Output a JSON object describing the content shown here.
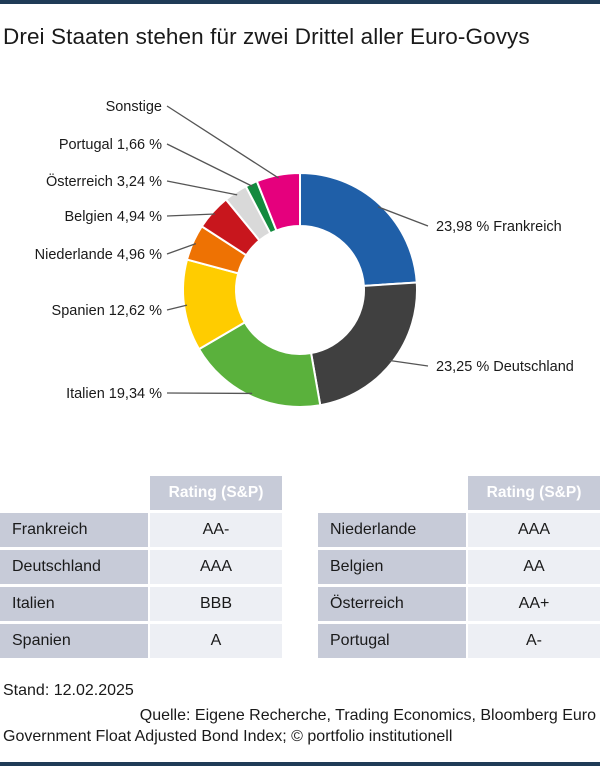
{
  "title": "Drei Staaten stehen für zwei Drittel aller Euro-Govys",
  "chart_data": {
    "type": "pie",
    "variant": "donut",
    "start": "12 o'clock, clockwise",
    "slices": [
      {
        "name": "Frankreich",
        "value": 23.98,
        "label": "23,98 % Frankreich",
        "color": "#1f5fa8",
        "label_side": "right"
      },
      {
        "name": "Deutschland",
        "value": 23.25,
        "label": "23,25 % Deutschland",
        "color": "#404040",
        "label_side": "right"
      },
      {
        "name": "Italien",
        "value": 19.34,
        "label": "Italien 19,34 %",
        "color": "#5ab13c",
        "label_side": "left"
      },
      {
        "name": "Spanien",
        "value": 12.62,
        "label": "Spanien 12,62 %",
        "color": "#ffcc00",
        "label_side": "left"
      },
      {
        "name": "Niederlande",
        "value": 4.96,
        "label": "Niederlande 4,96 %",
        "color": "#ee7203",
        "label_side": "left"
      },
      {
        "name": "Belgien",
        "value": 4.94,
        "label": "Belgien 4,94 %",
        "color": "#c8161d",
        "label_side": "left"
      },
      {
        "name": "Österreich",
        "value": 3.24,
        "label": "Österreich 3,24 %",
        "color": "#d9d9d9",
        "label_side": "left"
      },
      {
        "name": "Portugal",
        "value": 1.66,
        "label": "Portugal 1,66 %",
        "color": "#138a3e",
        "label_side": "left"
      },
      {
        "name": "Sonstige",
        "value": 6.01,
        "label": "Sonstige",
        "color": "#e5007d",
        "label_side": "left"
      }
    ]
  },
  "ratings": {
    "header": "Rating (S&P)",
    "left": [
      {
        "country": "Frankreich",
        "rating": "AA-"
      },
      {
        "country": "Deutschland",
        "rating": "AAA"
      },
      {
        "country": "Italien",
        "rating": "BBB"
      },
      {
        "country": "Spanien",
        "rating": "A"
      }
    ],
    "right": [
      {
        "country": "Niederlande",
        "rating": "AAA"
      },
      {
        "country": "Belgien",
        "rating": "AA"
      },
      {
        "country": "Österreich",
        "rating": "AA+"
      },
      {
        "country": "Portugal",
        "rating": "A-"
      }
    ]
  },
  "footer": {
    "stand": "Stand: 12.02.2025",
    "source_line1": "Quelle: Eigene Recherche, Trading Economics, Bloomberg Euro",
    "source_line2": "Government Float Adjusted Bond Index; © portfolio institutionell"
  }
}
